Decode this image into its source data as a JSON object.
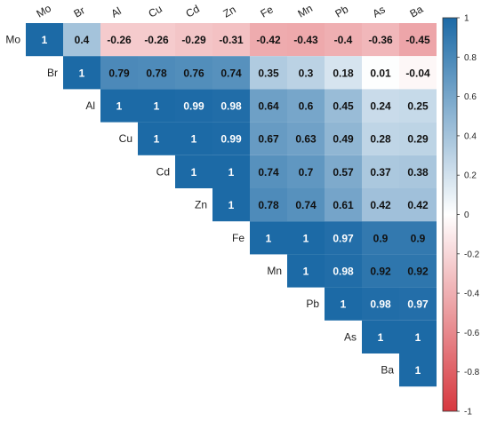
{
  "chart_data": {
    "type": "heatmap",
    "variables": [
      "Mo",
      "Br",
      "Al",
      "Cu",
      "Cd",
      "Zn",
      "Fe",
      "Mn",
      "Pb",
      "As",
      "Ba"
    ],
    "layout": "upper-triangle",
    "matrix": [
      [
        1,
        0.4,
        -0.26,
        -0.26,
        -0.29,
        -0.31,
        -0.42,
        -0.43,
        -0.4,
        -0.36,
        -0.45
      ],
      [
        null,
        1,
        0.79,
        0.78,
        0.76,
        0.74,
        0.35,
        0.3,
        0.18,
        0.01,
        -0.04
      ],
      [
        null,
        null,
        1,
        1,
        0.99,
        0.98,
        0.64,
        0.6,
        0.45,
        0.24,
        0.25
      ],
      [
        null,
        null,
        null,
        1,
        1,
        0.99,
        0.67,
        0.63,
        0.49,
        0.28,
        0.29
      ],
      [
        null,
        null,
        null,
        null,
        1,
        1,
        0.74,
        0.7,
        0.57,
        0.37,
        0.38
      ],
      [
        null,
        null,
        null,
        null,
        null,
        1,
        0.78,
        0.74,
        0.61,
        0.42,
        0.42
      ],
      [
        null,
        null,
        null,
        null,
        null,
        null,
        1,
        1,
        0.97,
        0.9,
        0.9
      ],
      [
        null,
        null,
        null,
        null,
        null,
        null,
        null,
        1,
        0.98,
        0.92,
        0.92
      ],
      [
        null,
        null,
        null,
        null,
        null,
        null,
        null,
        null,
        1,
        0.98,
        0.97
      ],
      [
        null,
        null,
        null,
        null,
        null,
        null,
        null,
        null,
        null,
        1,
        1
      ],
      [
        null,
        null,
        null,
        null,
        null,
        null,
        null,
        null,
        null,
        null,
        1
      ]
    ],
    "color_scale": {
      "range": [
        -1,
        1
      ],
      "ticks": [
        1,
        0.8,
        0.6,
        0.4,
        0.2,
        0,
        -0.2,
        -0.4,
        -0.6,
        -0.8,
        -1
      ],
      "stops": {
        "negative": "#d7383f",
        "zero": "#ffffff",
        "positive": "#1c6aa6"
      }
    },
    "legend_placement": "right"
  }
}
